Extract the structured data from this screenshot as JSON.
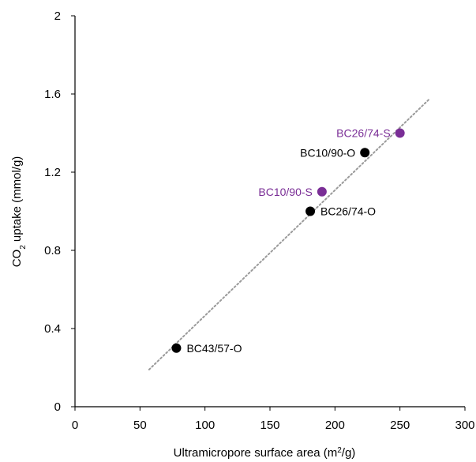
{
  "chart_data": {
    "type": "scatter",
    "title": "",
    "xlabel": {
      "main": "Ultramicropore surface area (m",
      "sup": "2",
      "end": "/g)"
    },
    "ylabel": {
      "pre": "CO",
      "sub": "2",
      "post": " uptake (mmol/g)"
    },
    "xlim": [
      0,
      300
    ],
    "ylim": [
      0,
      2
    ],
    "x_ticks": [
      "0",
      "50",
      "100",
      "150",
      "200",
      "250",
      "300"
    ],
    "y_ticks": [
      "0",
      "0.4",
      "0.8",
      "1.2",
      "1.6",
      "2"
    ],
    "grid": false,
    "legend": "none",
    "points": [
      {
        "label": "BC43/57-O",
        "x": 78,
        "y": 0.3,
        "color": "#000000"
      },
      {
        "label": "BC26/74-O",
        "x": 181,
        "y": 1.0,
        "color": "#000000"
      },
      {
        "label": "BC10/90-O",
        "x": 223,
        "y": 1.3,
        "color": "#000000"
      },
      {
        "label": "BC10/90-S",
        "x": 190,
        "y": 1.1,
        "color": "#7a2e96"
      },
      {
        "label": "BC26/74-S",
        "x": 250,
        "y": 1.4,
        "color": "#7a2e96"
      }
    ],
    "trendline": {
      "style": "dotted",
      "color": "#9a9a9a",
      "from": {
        "x": 57,
        "y": 0.19
      },
      "to": {
        "x": 272,
        "y": 1.57
      }
    }
  }
}
